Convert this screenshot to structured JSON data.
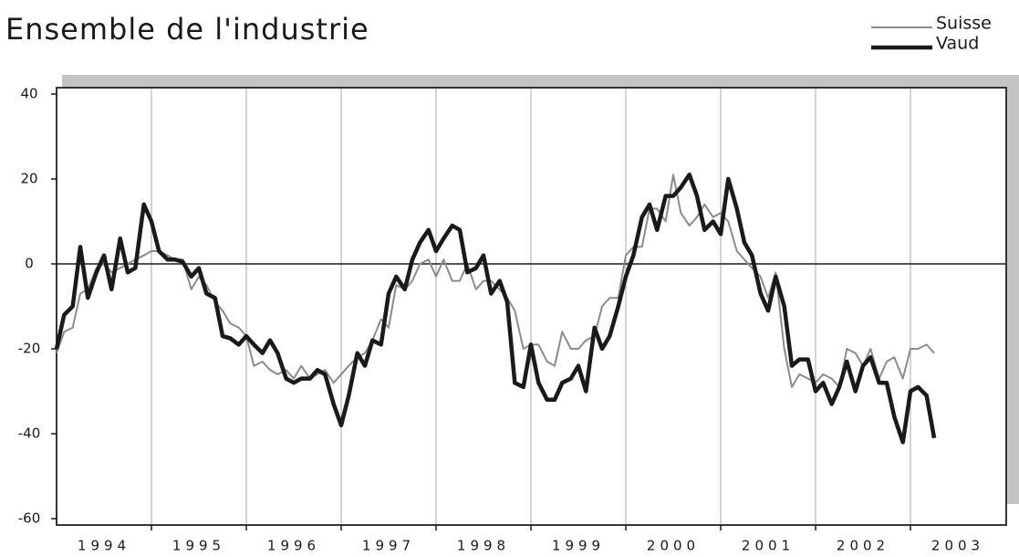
{
  "chart_data": {
    "type": "line",
    "title": "Ensemble de l'industrie",
    "x": [
      1994,
      1994.08,
      1994.17,
      1994.25,
      1994.33,
      1994.42,
      1994.5,
      1994.58,
      1994.67,
      1994.75,
      1994.83,
      1994.92,
      1995,
      1995.08,
      1995.17,
      1995.25,
      1995.33,
      1995.42,
      1995.5,
      1995.58,
      1995.67,
      1995.75,
      1995.83,
      1995.92,
      1996,
      1996.08,
      1996.17,
      1996.25,
      1996.33,
      1996.42,
      1996.5,
      1996.58,
      1996.67,
      1996.75,
      1996.83,
      1996.92,
      1997,
      1997.08,
      1997.17,
      1997.25,
      1997.33,
      1997.42,
      1997.5,
      1997.58,
      1997.67,
      1997.75,
      1997.83,
      1997.92,
      1998,
      1998.08,
      1998.17,
      1998.25,
      1998.33,
      1998.42,
      1998.5,
      1998.58,
      1998.67,
      1998.75,
      1998.83,
      1998.92,
      1999,
      1999.08,
      1999.17,
      1999.25,
      1999.33,
      1999.42,
      1999.5,
      1999.58,
      1999.67,
      1999.75,
      1999.83,
      1999.92,
      2000,
      2000.08,
      2000.17,
      2000.25,
      2000.33,
      2000.42,
      2000.5,
      2000.58,
      2000.67,
      2000.75,
      2000.83,
      2000.92,
      2001,
      2001.08,
      2001.17,
      2001.25,
      2001.33,
      2001.42,
      2001.5,
      2001.58,
      2001.67,
      2001.75,
      2001.83,
      2001.92,
      2002,
      2002.08,
      2002.17,
      2002.25,
      2002.33,
      2002.42,
      2002.5,
      2002.58,
      2002.67,
      2002.75,
      2002.83,
      2002.92,
      2003,
      2003.08,
      2003.17,
      2003.25
    ],
    "series": [
      {
        "name": "Suisse",
        "color": "#8c8c8c",
        "width": 2,
        "values": [
          -21,
          -16,
          -15,
          -7,
          -6,
          -1,
          0,
          -2,
          -1,
          0,
          1,
          2,
          3,
          3,
          2,
          1,
          1,
          -6,
          -3,
          -5,
          -9,
          -11,
          -14,
          -15,
          -17,
          -24,
          -23,
          -25,
          -26,
          -25,
          -27,
          -24,
          -27,
          -26,
          -25,
          -28,
          -26,
          -24,
          -22,
          -21,
          -18,
          -13,
          -15,
          -5,
          -6,
          -4,
          0,
          1,
          -3,
          1,
          -4,
          -4,
          0,
          -6,
          -4,
          -4,
          -6,
          -8,
          -11,
          -20,
          -19,
          -19,
          -23,
          -24,
          -16,
          -20,
          -20,
          -18,
          -17,
          -10,
          -8,
          -8,
          2,
          4,
          4,
          13,
          13,
          10,
          21,
          12,
          9,
          11,
          14,
          11,
          12,
          10,
          3,
          1,
          -1,
          -3,
          -8,
          -2,
          -20,
          -29,
          -26,
          -27,
          -28,
          -26,
          -27,
          -29,
          -20,
          -21,
          -24,
          -20,
          -27,
          -23,
          -22,
          -27,
          -20,
          -20,
          -19,
          -21
        ]
      },
      {
        "name": "Vaud",
        "color": "#1a1a1a",
        "width": 4.5,
        "values": [
          -20,
          -12,
          -10,
          4,
          -8,
          -2,
          2,
          -6,
          6,
          -2,
          -1,
          14,
          10,
          3,
          1,
          1,
          0.5,
          -3,
          -1,
          -7,
          -8,
          -17,
          -17.5,
          -19,
          -17,
          -19,
          -21,
          -18,
          -21,
          -27,
          -28,
          -27,
          -27,
          -25,
          -26,
          -33,
          -38,
          -31,
          -21,
          -24,
          -18,
          -19,
          -7,
          -3,
          -6,
          1,
          5,
          8,
          3,
          6,
          9,
          8,
          -2,
          -1,
          2,
          -7,
          -4,
          -9,
          -28,
          -29,
          -19,
          -28,
          -32,
          -32,
          -28,
          -27,
          -24,
          -30,
          -15,
          -20,
          -17,
          -10,
          -3,
          2,
          11,
          14,
          8,
          16,
          16,
          18,
          21,
          16,
          8,
          10,
          7,
          20,
          13,
          5,
          2,
          -7,
          -11,
          -3,
          -10,
          -24,
          -22.5,
          -22.5,
          -30,
          -28,
          -33,
          -29,
          -23,
          -30,
          -24,
          -22,
          -28,
          -28,
          -36,
          -42,
          -30,
          -29,
          -31,
          -41
        ]
      }
    ],
    "xlim": [
      1994,
      2004
    ],
    "xticks": [
      {
        "value": 1994.5,
        "label": "1994"
      },
      {
        "value": 1995.5,
        "label": "1995"
      },
      {
        "value": 1996.5,
        "label": "1996"
      },
      {
        "value": 1997.5,
        "label": "1997"
      },
      {
        "value": 1998.5,
        "label": "1998"
      },
      {
        "value": 1999.5,
        "label": "1999"
      },
      {
        "value": 2000.5,
        "label": "2000"
      },
      {
        "value": 2001.5,
        "label": "2001"
      },
      {
        "value": 2002.5,
        "label": "2002"
      },
      {
        "value": 2003.5,
        "label": "2003"
      }
    ],
    "ylim": [
      -61.5,
      41.5
    ],
    "yticks": [
      -60,
      -40,
      -20,
      0,
      20,
      40
    ],
    "hline": 0,
    "grid": true,
    "legend": "top-right"
  }
}
